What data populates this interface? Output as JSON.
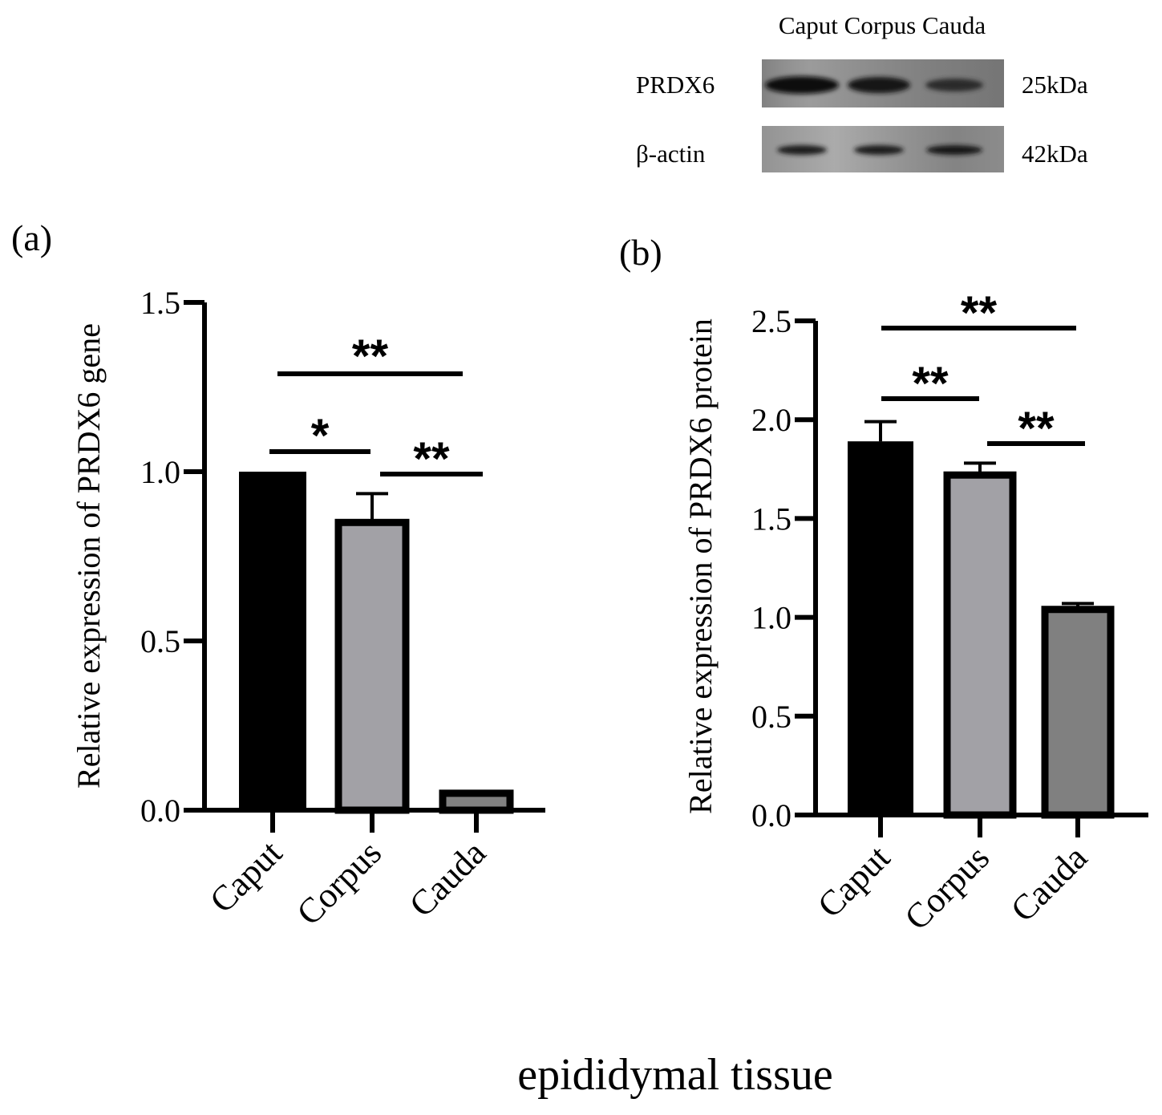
{
  "figure": {
    "shared_xlabel": "epididymal tissue"
  },
  "western_blot": {
    "lanes": [
      "Caput",
      "Corpus",
      "Cauda"
    ],
    "lanes_header": "Caput Corpus Cauda",
    "rows": [
      {
        "label": "PRDX6",
        "size": "25kDa",
        "band_intensity": [
          1.0,
          0.85,
          0.45
        ]
      },
      {
        "label": "β-actin",
        "size": "42kDa",
        "band_intensity": [
          0.7,
          0.7,
          0.75
        ]
      }
    ]
  },
  "chart_data": [
    {
      "panel": "(a)",
      "type": "bar",
      "title": "",
      "ylabel": "Relative expression of PRDX6 gene",
      "xlabel": "epididymal tissue",
      "categories": [
        "Caput",
        "Corpus",
        "Cauda"
      ],
      "values": [
        1.0,
        0.85,
        0.05
      ],
      "errors": [
        0.0,
        0.085,
        0.005
      ],
      "ylim": [
        0,
        1.5
      ],
      "yticks": [
        0.0,
        0.5,
        1.0,
        1.5
      ],
      "ytick_labels": [
        "0.0",
        "0.5",
        "1.0",
        "1.5"
      ],
      "grid": false,
      "colors": [
        "#000000",
        "#a2a1a6",
        "#808080"
      ],
      "significance": [
        {
          "from": 0,
          "to": 1,
          "label": "*",
          "level": 1.06
        },
        {
          "from": 1,
          "to": 2,
          "label": "**",
          "level": 1.0
        },
        {
          "from": 0,
          "to": 2,
          "label": "**",
          "level": 1.29
        }
      ]
    },
    {
      "panel": "(b)",
      "type": "bar",
      "title": "",
      "ylabel": "Relative expression of PRDX6 protein",
      "xlabel": "epididymal tissue",
      "categories": [
        "Caput",
        "Corpus",
        "Cauda"
      ],
      "values": [
        1.89,
        1.72,
        1.04
      ],
      "errors": [
        0.1,
        0.06,
        0.03
      ],
      "ylim": [
        0,
        2.5
      ],
      "yticks": [
        0.0,
        0.5,
        1.0,
        1.5,
        2.0,
        2.5
      ],
      "ytick_labels": [
        "0.0",
        "0.5",
        "1.0",
        "1.5",
        "2.0",
        "2.5"
      ],
      "grid": false,
      "colors": [
        "#000000",
        "#a2a1a6",
        "#808080"
      ],
      "significance": [
        {
          "from": 0,
          "to": 1,
          "label": "**",
          "level": 2.1
        },
        {
          "from": 1,
          "to": 2,
          "label": "**",
          "level": 1.88
        },
        {
          "from": 0,
          "to": 2,
          "label": "**",
          "level": 2.45
        }
      ]
    }
  ]
}
